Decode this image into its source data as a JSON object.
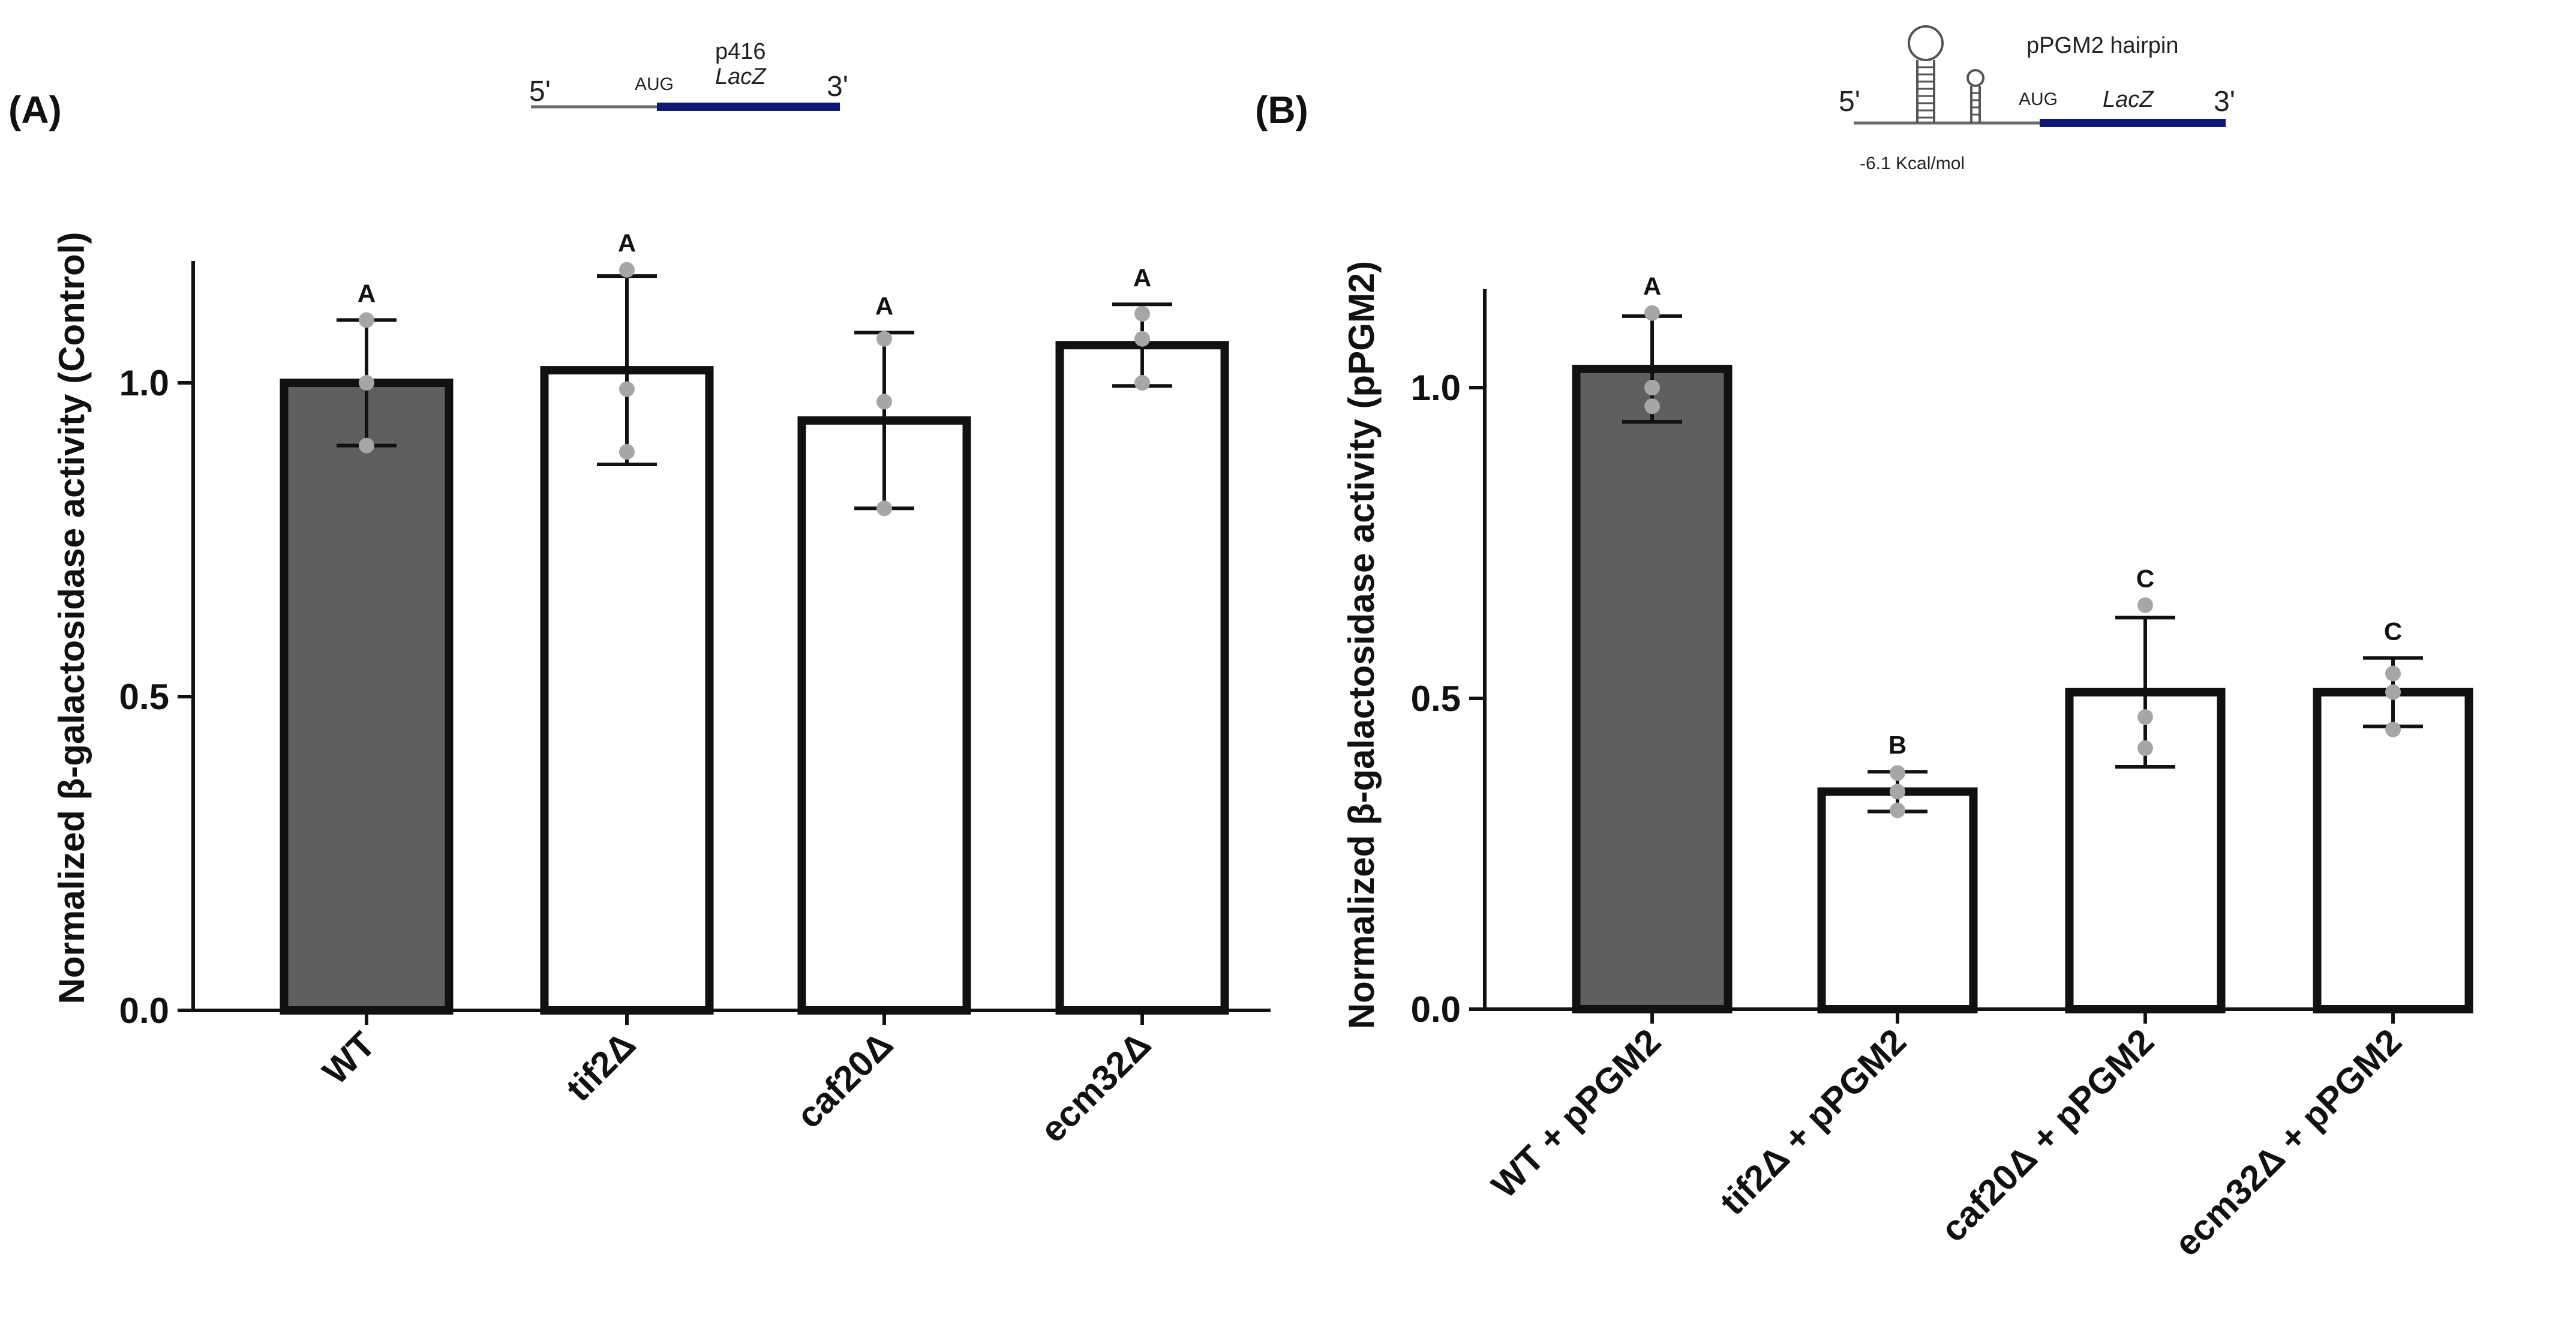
{
  "chart_data": [
    {
      "type": "bar",
      "panel_label": "(A)",
      "ylabel": "Normalized β-galactosidase activity (Control)",
      "ylim": [
        0,
        1.2
      ],
      "yticks": [
        0.0,
        0.5,
        1.0
      ],
      "ytick_labels": [
        "0.0",
        "0.5",
        "1.0"
      ],
      "categories": [
        "WT",
        "tif2Δ",
        "caf20Δ",
        "ecm32Δ"
      ],
      "values": [
        1.0,
        1.02,
        0.94,
        1.06
      ],
      "error": [
        0.1,
        0.15,
        0.14,
        0.065
      ],
      "points": [
        [
          0.9,
          1.0,
          1.1
        ],
        [
          0.89,
          0.99,
          1.18
        ],
        [
          0.8,
          0.97,
          1.07
        ],
        [
          1.0,
          1.07,
          1.11
        ]
      ],
      "significance": [
        "A",
        "A",
        "A",
        "A"
      ],
      "bar_fill": [
        "#5f5f5f",
        "#ffffff",
        "#ffffff",
        "#ffffff"
      ],
      "construct": {
        "five": "5'",
        "aug": "AUG",
        "plasmid": "p416",
        "gene": "LacZ",
        "three": "3'"
      }
    },
    {
      "type": "bar",
      "panel_label": "(B)",
      "ylabel": "Normalized β-galactosidase activity (pPGM2)",
      "ylim": [
        0,
        1.15
      ],
      "yticks": [
        0.0,
        0.5,
        1.0
      ],
      "ytick_labels": [
        "0.0",
        "0.5",
        "1.0"
      ],
      "categories": [
        "WT + pPGM2",
        "tif2Δ + pPGM2",
        "caf20Δ + pPGM2",
        "ecm32Δ + pPGM2"
      ],
      "values": [
        1.03,
        0.35,
        0.51,
        0.51
      ],
      "error": [
        0.085,
        0.032,
        0.12,
        0.055
      ],
      "points": [
        [
          0.97,
          1.0,
          1.12
        ],
        [
          0.32,
          0.35,
          0.38
        ],
        [
          0.42,
          0.47,
          0.65
        ],
        [
          0.45,
          0.51,
          0.54
        ]
      ],
      "significance": [
        "A",
        "B",
        "C",
        "C"
      ],
      "bar_fill": [
        "#5f5f5f",
        "#ffffff",
        "#ffffff",
        "#ffffff"
      ],
      "construct": {
        "title": "pPGM2 hairpin",
        "five": "5'",
        "aug": "AUG",
        "gene": "LacZ",
        "three": "3'",
        "energy": "-6.1 Kcal/mol"
      }
    }
  ],
  "colors": {
    "axis": "#111111",
    "dark_bar": "#5f5f5f",
    "point": "#a6a6a6",
    "construct_line": "#6b6b6b",
    "construct_orf": "#0d1a78"
  }
}
